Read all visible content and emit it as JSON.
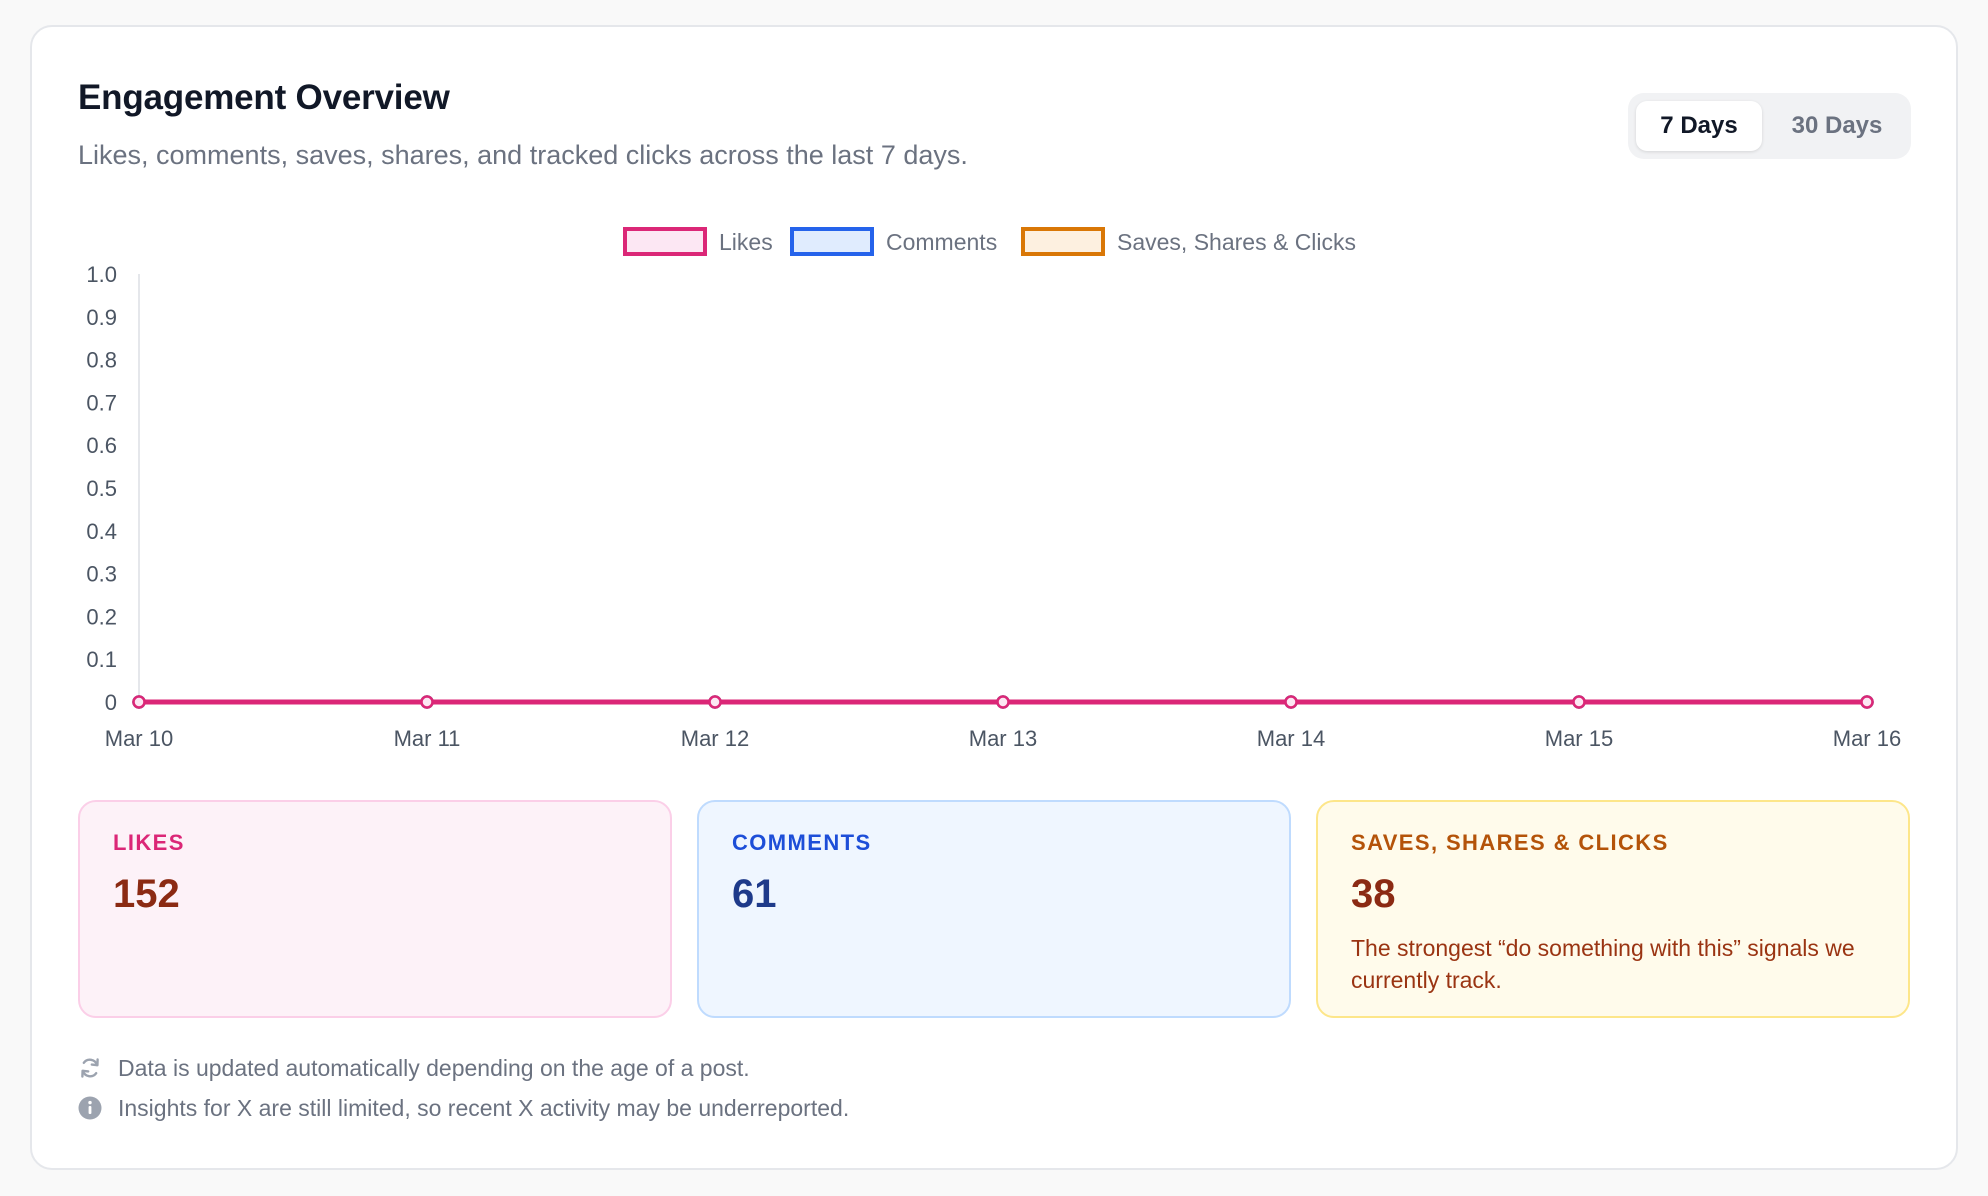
{
  "header": {
    "title": "Engagement Overview",
    "subtitle": "Likes, comments, saves, shares, and tracked clicks across the last 7 days."
  },
  "range_toggle": {
    "options": [
      "7 Days",
      "30 Days"
    ],
    "selected": "7 Days"
  },
  "chart_data": {
    "type": "line",
    "categories": [
      "Mar 10",
      "Mar 11",
      "Mar 12",
      "Mar 13",
      "Mar 14",
      "Mar 15",
      "Mar 16"
    ],
    "series": [
      {
        "name": "Likes",
        "values": [
          0,
          0,
          0,
          0,
          0,
          0,
          0
        ],
        "color": "#db2777",
        "fill": "#fce7f3"
      },
      {
        "name": "Comments",
        "values": [
          0,
          0,
          0,
          0,
          0,
          0,
          0
        ],
        "color": "#2563eb",
        "fill": "#e0ecfe"
      },
      {
        "name": "Saves, Shares & Clicks",
        "values": [
          0,
          0,
          0,
          0,
          0,
          0,
          0
        ],
        "color": "#d97706",
        "fill": "#fdf0e0"
      }
    ],
    "ylim": [
      0,
      1.0
    ],
    "yticks": [
      "1.0",
      "0.9",
      "0.8",
      "0.7",
      "0.6",
      "0.5",
      "0.4",
      "0.3",
      "0.2",
      "0.1",
      "0"
    ],
    "legend_position": "top-center",
    "grid": false
  },
  "stats": {
    "likes": {
      "label": "LIKES",
      "value": "152"
    },
    "comments": {
      "label": "COMMENTS",
      "value": "61"
    },
    "saves": {
      "label": "SAVES, SHARES & CLICKS",
      "value": "38",
      "note": "The strongest “do something with this” signals we currently track."
    }
  },
  "footnotes": {
    "update": {
      "icon": "refresh-icon",
      "text": "Data is updated automatically depending on the age of a post."
    },
    "limits": {
      "icon": "info-icon",
      "text": "Insights for X are still limited, so recent X activity may be underreported."
    }
  }
}
